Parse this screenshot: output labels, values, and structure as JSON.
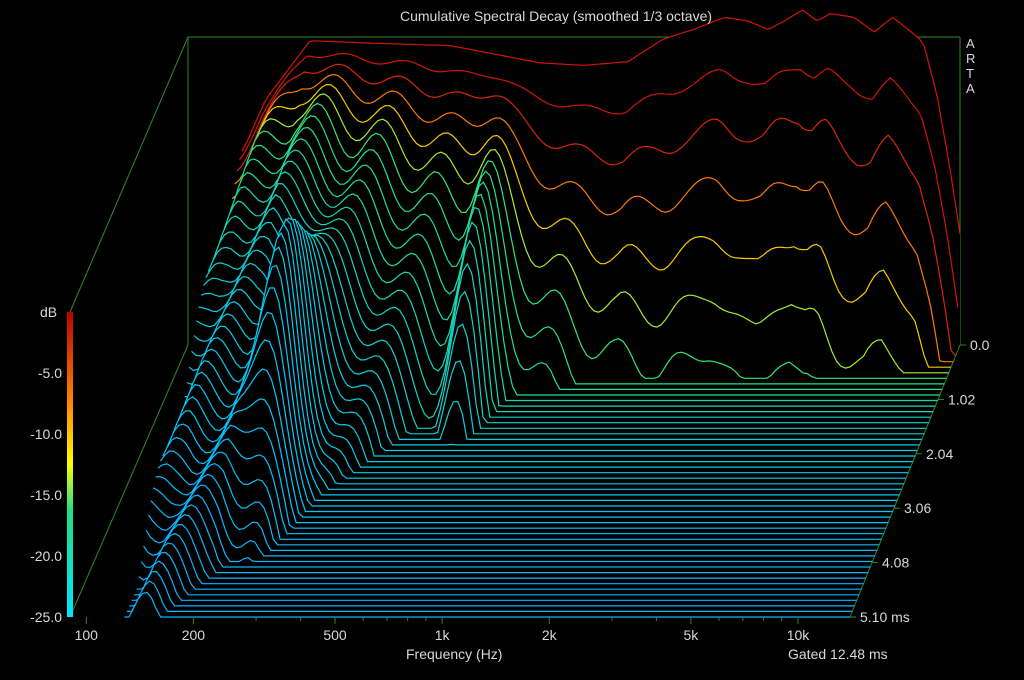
{
  "chart_data": {
    "type": "waterfall",
    "title": "Cumulative Spectral Decay (smoothed 1/3 octave)",
    "brand": "ARTA",
    "xlabel": "Frequency (Hz)",
    "ylabel": "dB",
    "footer": "Gated 12.48 ms",
    "x_scale": "log",
    "xlim": [
      90,
      14000
    ],
    "ylim": [
      -25,
      0
    ],
    "x_tick_labels": [
      {
        "f": 100,
        "label": "100"
      },
      {
        "f": 200,
        "label": "200"
      },
      {
        "f": 500,
        "label": "500"
      },
      {
        "f": 1000,
        "label": "1k"
      },
      {
        "f": 2000,
        "label": "2k"
      },
      {
        "f": 5000,
        "label": "5k"
      },
      {
        "f": 10000,
        "label": "10k"
      }
    ],
    "x_minor_ticks": [
      300,
      400,
      600,
      700,
      800,
      900,
      3000,
      4000,
      6000,
      7000,
      8000,
      9000
    ],
    "y_tick_labels": [
      {
        "v": -5,
        "label": "-5.0"
      },
      {
        "v": -10,
        "label": "-10.0"
      },
      {
        "v": -15,
        "label": "-15.0"
      },
      {
        "v": -20,
        "label": "-20.0"
      },
      {
        "v": -25,
        "label": "-25.0"
      }
    ],
    "time_ticks": [
      {
        "t": 0,
        "label": "0.0"
      },
      {
        "t": 1.02,
        "label": "1.02"
      },
      {
        "t": 2.04,
        "label": "2.04"
      },
      {
        "t": 3.06,
        "label": "3.06"
      },
      {
        "t": 4.08,
        "label": "4.08"
      },
      {
        "t": 5.1,
        "label": "5.10 ms"
      }
    ],
    "time_range_ms": [
      0,
      5.1
    ],
    "slices": 50,
    "initial_response": {
      "freq": [
        130,
        150,
        200,
        300,
        500,
        700,
        900,
        1200,
        1600,
        2000,
        2500,
        3000,
        3500,
        4000,
        4500,
        5000,
        5500,
        6000,
        7000,
        8000,
        9000,
        10000,
        11000,
        12000,
        13000,
        13500,
        14000
      ],
      "db": [
        -9,
        -5,
        -0.3,
        -0.5,
        -0.7,
        -1.5,
        -2.1,
        -2.3,
        -2.0,
        -0.2,
        0.7,
        1.6,
        1.3,
        0.6,
        1.4,
        2.2,
        1.3,
        1.9,
        1.6,
        0.4,
        1.6,
        0.6,
        -0.4,
        -4.5,
        -10,
        -13,
        -16
      ]
    },
    "decay_features": [
      {
        "f": 250,
        "t": 2.8,
        "amp": 13
      },
      {
        "f": 700,
        "t": 1.6,
        "amp": 15
      },
      {
        "f": 1500,
        "t": 2.9,
        "amp": 5
      },
      {
        "f": 2000,
        "t": 2.5,
        "amp": 5
      },
      {
        "f": 3000,
        "t": 1.2,
        "amp": 5
      },
      {
        "f": 4500,
        "t": 1.0,
        "amp": 6
      },
      {
        "f": 6000,
        "t": 1.2,
        "amp": 6
      },
      {
        "f": 9000,
        "t": 1.4,
        "amp": 5
      },
      {
        "f": 10000,
        "t": 1.5,
        "amp": 6
      }
    ]
  }
}
